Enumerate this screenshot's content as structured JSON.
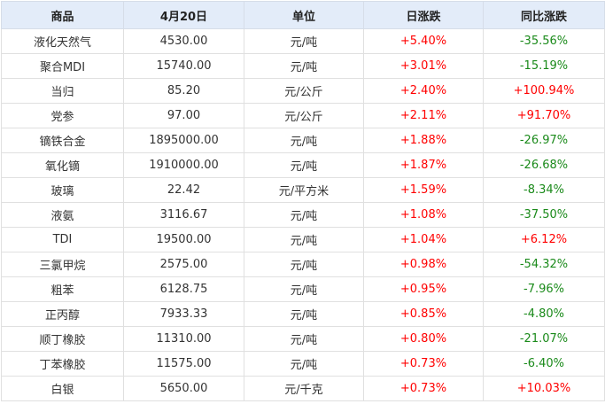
{
  "colors": {
    "up": "#ff0000",
    "down": "#1a8a1a",
    "header_bg": "#e3ecf9"
  },
  "headers": [
    "商品",
    "4月20日",
    "单位",
    "日涨跌",
    "同比涨跌"
  ],
  "rows": [
    [
      "液化天然气",
      "4530.00",
      "元/吨",
      "+5.40%",
      "-35.56%"
    ],
    [
      "聚合MDI",
      "15740.00",
      "元/吨",
      "+3.01%",
      "-15.19%"
    ],
    [
      "当归",
      "85.20",
      "元/公斤",
      "+2.40%",
      "+100.94%"
    ],
    [
      "党参",
      "97.00",
      "元/公斤",
      "+2.11%",
      "+91.70%"
    ],
    [
      "镝铁合金",
      "1895000.00",
      "元/吨",
      "+1.88%",
      "-26.97%"
    ],
    [
      "氧化镝",
      "1910000.00",
      "元/吨",
      "+1.87%",
      "-26.68%"
    ],
    [
      "玻璃",
      "22.42",
      "元/平方米",
      "+1.59%",
      "-8.34%"
    ],
    [
      "液氨",
      "3116.67",
      "元/吨",
      "+1.08%",
      "-37.50%"
    ],
    [
      "TDI",
      "19500.00",
      "元/吨",
      "+1.04%",
      "+6.12%"
    ],
    [
      "三氯甲烷",
      "2575.00",
      "元/吨",
      "+0.98%",
      "-54.32%"
    ],
    [
      "粗苯",
      "6128.75",
      "元/吨",
      "+0.95%",
      "-7.96%"
    ],
    [
      "正丙醇",
      "7933.33",
      "元/吨",
      "+0.85%",
      "-4.80%"
    ],
    [
      "顺丁橡胶",
      "11310.00",
      "元/吨",
      "+0.80%",
      "-21.07%"
    ],
    [
      "丁苯橡胶",
      "11575.00",
      "元/吨",
      "+0.73%",
      "-6.40%"
    ],
    [
      "白银",
      "5650.00",
      "元/千克",
      "+0.73%",
      "+10.03%"
    ]
  ]
}
